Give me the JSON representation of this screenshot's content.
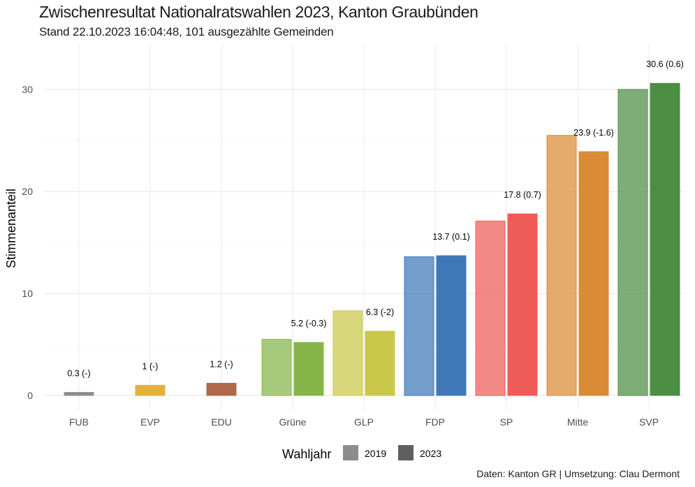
{
  "title": "Zwischenresultat Nationalratswahlen 2023, Kanton Graubünden",
  "subtitle": "Stand 22.10.2023 16:04:48, 101 ausgezählte Gemeinden",
  "caption": "Daten: Kanton GR | Umsetzung: Clau Dermont",
  "chart_data": {
    "type": "bar",
    "ylabel": "Stimmenanteil",
    "ylim": [
      0,
      33
    ],
    "yticks": [
      0,
      10,
      20,
      30
    ],
    "grid": true,
    "legend": {
      "title": "Wahljahr",
      "position": "bottom",
      "items": [
        {
          "label": "2019",
          "color": "#8c8c8c"
        },
        {
          "label": "2023",
          "color": "#5f5f5f"
        }
      ]
    },
    "categories": [
      "FUB",
      "EVP",
      "EDU",
      "Grüne",
      "GLP",
      "FDP",
      "SP",
      "Mitte",
      "SVP"
    ],
    "colors": [
      "#8c8c8c",
      "#e3b23c",
      "#b0684a",
      "#86b64a",
      "#c9c84a",
      "#3f78b8",
      "#ef5b57",
      "#d98b35",
      "#4c8e43"
    ],
    "series": [
      {
        "name": "2019",
        "values": [
          null,
          null,
          null,
          5.5,
          8.3,
          13.6,
          17.1,
          25.5,
          30.0
        ]
      },
      {
        "name": "2023",
        "values": [
          0.3,
          1.0,
          1.2,
          5.2,
          6.3,
          13.7,
          17.8,
          23.9,
          30.6
        ]
      }
    ],
    "data_labels": [
      "0.3 (-)",
      "1 (-)",
      "1.2 (-)",
      "5.2 (-0.3)",
      "6.3 (-2)",
      "13.7 (0.1)",
      "17.8 (0.7)",
      "23.9 (-1.6)",
      "30.6 (0.6)"
    ]
  }
}
